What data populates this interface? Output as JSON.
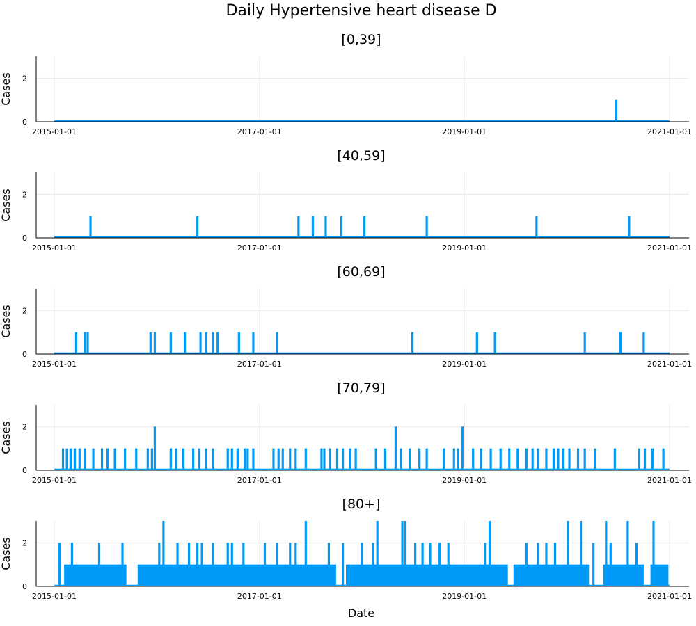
{
  "chart_data": {
    "type": "line",
    "title": "Daily Hypertensive heart disease D",
    "xlabel": "Date",
    "ylabel": "Cases",
    "x_ticks": [
      "2015-01-01",
      "2017-01-01",
      "2019-01-01",
      "2021-01-01"
    ],
    "x_range": [
      "2015-01-01",
      "2021-01-01"
    ],
    "ylim": [
      0,
      3
    ],
    "y_ticks": [
      0,
      2
    ],
    "grid": true,
    "color": "#009af9",
    "panels": [
      {
        "name": "[0,39]",
        "spikes": [
          {
            "date": "2020-06-25",
            "value": 1
          }
        ]
      },
      {
        "name": "[40,59]",
        "spikes": [
          {
            "date": "2015-05-10",
            "value": 1
          },
          {
            "date": "2016-05-25",
            "value": 1
          },
          {
            "date": "2017-05-20",
            "value": 1
          },
          {
            "date": "2017-07-10",
            "value": 1
          },
          {
            "date": "2017-08-25",
            "value": 1
          },
          {
            "date": "2017-10-20",
            "value": 1
          },
          {
            "date": "2018-01-10",
            "value": 1
          },
          {
            "date": "2018-08-20",
            "value": 1
          },
          {
            "date": "2019-09-15",
            "value": 1
          },
          {
            "date": "2020-08-10",
            "value": 1
          }
        ]
      },
      {
        "name": "[60,69]",
        "spikes": [
          {
            "date": "2015-03-20",
            "value": 1
          },
          {
            "date": "2015-04-20",
            "value": 1
          },
          {
            "date": "2015-04-30",
            "value": 1
          },
          {
            "date": "2015-12-10",
            "value": 1
          },
          {
            "date": "2015-12-25",
            "value": 1
          },
          {
            "date": "2016-02-20",
            "value": 1
          },
          {
            "date": "2016-04-10",
            "value": 1
          },
          {
            "date": "2016-06-05",
            "value": 1
          },
          {
            "date": "2016-06-25",
            "value": 1
          },
          {
            "date": "2016-07-20",
            "value": 1
          },
          {
            "date": "2016-08-05",
            "value": 1
          },
          {
            "date": "2016-10-20",
            "value": 1
          },
          {
            "date": "2016-12-10",
            "value": 1
          },
          {
            "date": "2017-03-05",
            "value": 1
          },
          {
            "date": "2018-06-30",
            "value": 1
          },
          {
            "date": "2019-02-15",
            "value": 1
          },
          {
            "date": "2019-04-20",
            "value": 1
          },
          {
            "date": "2020-03-05",
            "value": 1
          },
          {
            "date": "2020-07-10",
            "value": 1
          },
          {
            "date": "2020-10-01",
            "value": 1
          }
        ]
      },
      {
        "name": "[70,79]",
        "spikes": [
          {
            "date": "2015-02-01",
            "value": 1
          },
          {
            "date": "2015-02-15",
            "value": 1
          },
          {
            "date": "2015-02-28",
            "value": 1
          },
          {
            "date": "2015-03-15",
            "value": 1
          },
          {
            "date": "2015-04-01",
            "value": 1
          },
          {
            "date": "2015-04-20",
            "value": 1
          },
          {
            "date": "2015-05-20",
            "value": 1
          },
          {
            "date": "2015-06-20",
            "value": 1
          },
          {
            "date": "2015-07-10",
            "value": 1
          },
          {
            "date": "2015-08-05",
            "value": 1
          },
          {
            "date": "2015-09-10",
            "value": 1
          },
          {
            "date": "2015-10-20",
            "value": 1
          },
          {
            "date": "2015-11-30",
            "value": 1
          },
          {
            "date": "2015-12-15",
            "value": 1
          },
          {
            "date": "2015-12-25",
            "value": 2
          },
          {
            "date": "2016-02-20",
            "value": 1
          },
          {
            "date": "2016-03-10",
            "value": 1
          },
          {
            "date": "2016-04-05",
            "value": 1
          },
          {
            "date": "2016-05-10",
            "value": 1
          },
          {
            "date": "2016-06-01",
            "value": 1
          },
          {
            "date": "2016-06-25",
            "value": 1
          },
          {
            "date": "2016-07-20",
            "value": 1
          },
          {
            "date": "2016-09-10",
            "value": 1
          },
          {
            "date": "2016-09-25",
            "value": 1
          },
          {
            "date": "2016-10-15",
            "value": 1
          },
          {
            "date": "2016-11-10",
            "value": 1
          },
          {
            "date": "2016-11-20",
            "value": 1
          },
          {
            "date": "2016-12-10",
            "value": 1
          },
          {
            "date": "2017-02-20",
            "value": 1
          },
          {
            "date": "2017-03-10",
            "value": 1
          },
          {
            "date": "2017-03-25",
            "value": 1
          },
          {
            "date": "2017-04-20",
            "value": 1
          },
          {
            "date": "2017-05-10",
            "value": 1
          },
          {
            "date": "2017-06-15",
            "value": 1
          },
          {
            "date": "2017-08-10",
            "value": 1
          },
          {
            "date": "2017-08-20",
            "value": 1
          },
          {
            "date": "2017-09-10",
            "value": 1
          },
          {
            "date": "2017-10-05",
            "value": 1
          },
          {
            "date": "2017-10-25",
            "value": 1
          },
          {
            "date": "2017-11-20",
            "value": 1
          },
          {
            "date": "2017-12-10",
            "value": 1
          },
          {
            "date": "2018-02-20",
            "value": 1
          },
          {
            "date": "2018-03-25",
            "value": 1
          },
          {
            "date": "2018-05-01",
            "value": 2
          },
          {
            "date": "2018-05-20",
            "value": 1
          },
          {
            "date": "2018-06-20",
            "value": 1
          },
          {
            "date": "2018-07-25",
            "value": 1
          },
          {
            "date": "2018-08-20",
            "value": 1
          },
          {
            "date": "2018-10-20",
            "value": 1
          },
          {
            "date": "2018-11-25",
            "value": 1
          },
          {
            "date": "2018-12-10",
            "value": 1
          },
          {
            "date": "2018-12-25",
            "value": 2
          },
          {
            "date": "2019-02-01",
            "value": 1
          },
          {
            "date": "2019-03-01",
            "value": 1
          },
          {
            "date": "2019-04-05",
            "value": 1
          },
          {
            "date": "2019-05-10",
            "value": 1
          },
          {
            "date": "2019-06-10",
            "value": 1
          },
          {
            "date": "2019-07-10",
            "value": 1
          },
          {
            "date": "2019-08-10",
            "value": 1
          },
          {
            "date": "2019-09-01",
            "value": 1
          },
          {
            "date": "2019-09-20",
            "value": 1
          },
          {
            "date": "2019-10-20",
            "value": 1
          },
          {
            "date": "2019-11-15",
            "value": 1
          },
          {
            "date": "2019-12-01",
            "value": 1
          },
          {
            "date": "2019-12-20",
            "value": 1
          },
          {
            "date": "2020-01-10",
            "value": 1
          },
          {
            "date": "2020-02-10",
            "value": 1
          },
          {
            "date": "2020-03-05",
            "value": 1
          },
          {
            "date": "2020-04-10",
            "value": 1
          },
          {
            "date": "2020-06-20",
            "value": 1
          },
          {
            "date": "2020-09-15",
            "value": 1
          },
          {
            "date": "2020-10-05",
            "value": 1
          },
          {
            "date": "2020-11-01",
            "value": 1
          },
          {
            "date": "2020-12-10",
            "value": 1
          }
        ]
      },
      {
        "name": "[80+]",
        "dense_ones_from": "2015-02-05",
        "dense_ones_to": "2020-12-28",
        "gaps": [
          {
            "from": "2015-09-15",
            "to": "2015-10-25"
          },
          {
            "from": "2017-10-01",
            "to": "2017-11-05"
          },
          {
            "from": "2019-06-05",
            "to": "2019-06-25"
          },
          {
            "from": "2020-03-20",
            "to": "2020-05-10"
          },
          {
            "from": "2020-10-01",
            "to": "2020-10-25"
          }
        ],
        "spikes": [
          {
            "date": "2015-01-20",
            "value": 2
          },
          {
            "date": "2015-03-05",
            "value": 2
          },
          {
            "date": "2015-06-10",
            "value": 2
          },
          {
            "date": "2015-09-01",
            "value": 2
          },
          {
            "date": "2016-01-10",
            "value": 2
          },
          {
            "date": "2016-01-25",
            "value": 3
          },
          {
            "date": "2016-03-15",
            "value": 2
          },
          {
            "date": "2016-04-25",
            "value": 2
          },
          {
            "date": "2016-05-25",
            "value": 2
          },
          {
            "date": "2016-06-10",
            "value": 2
          },
          {
            "date": "2016-07-20",
            "value": 2
          },
          {
            "date": "2016-09-10",
            "value": 2
          },
          {
            "date": "2016-09-25",
            "value": 2
          },
          {
            "date": "2016-11-05",
            "value": 2
          },
          {
            "date": "2017-01-20",
            "value": 2
          },
          {
            "date": "2017-03-05",
            "value": 2
          },
          {
            "date": "2017-04-20",
            "value": 2
          },
          {
            "date": "2017-05-10",
            "value": 2
          },
          {
            "date": "2017-06-15",
            "value": 3
          },
          {
            "date": "2017-09-05",
            "value": 2
          },
          {
            "date": "2017-10-25",
            "value": 2
          },
          {
            "date": "2018-01-01",
            "value": 2
          },
          {
            "date": "2018-02-10",
            "value": 2
          },
          {
            "date": "2018-02-25",
            "value": 3
          },
          {
            "date": "2018-05-25",
            "value": 3
          },
          {
            "date": "2018-06-05",
            "value": 3
          },
          {
            "date": "2018-07-10",
            "value": 2
          },
          {
            "date": "2018-08-05",
            "value": 2
          },
          {
            "date": "2018-09-01",
            "value": 2
          },
          {
            "date": "2018-10-05",
            "value": 2
          },
          {
            "date": "2018-11-05",
            "value": 2
          },
          {
            "date": "2019-03-15",
            "value": 2
          },
          {
            "date": "2019-04-01",
            "value": 3
          },
          {
            "date": "2019-08-10",
            "value": 2
          },
          {
            "date": "2019-09-20",
            "value": 2
          },
          {
            "date": "2019-10-20",
            "value": 2
          },
          {
            "date": "2019-11-20",
            "value": 2
          },
          {
            "date": "2020-01-05",
            "value": 3
          },
          {
            "date": "2020-02-20",
            "value": 3
          },
          {
            "date": "2020-04-05",
            "value": 2
          },
          {
            "date": "2020-05-20",
            "value": 3
          },
          {
            "date": "2020-06-05",
            "value": 2
          },
          {
            "date": "2020-08-05",
            "value": 3
          },
          {
            "date": "2020-09-05",
            "value": 2
          },
          {
            "date": "2020-11-05",
            "value": 3
          }
        ]
      }
    ]
  }
}
